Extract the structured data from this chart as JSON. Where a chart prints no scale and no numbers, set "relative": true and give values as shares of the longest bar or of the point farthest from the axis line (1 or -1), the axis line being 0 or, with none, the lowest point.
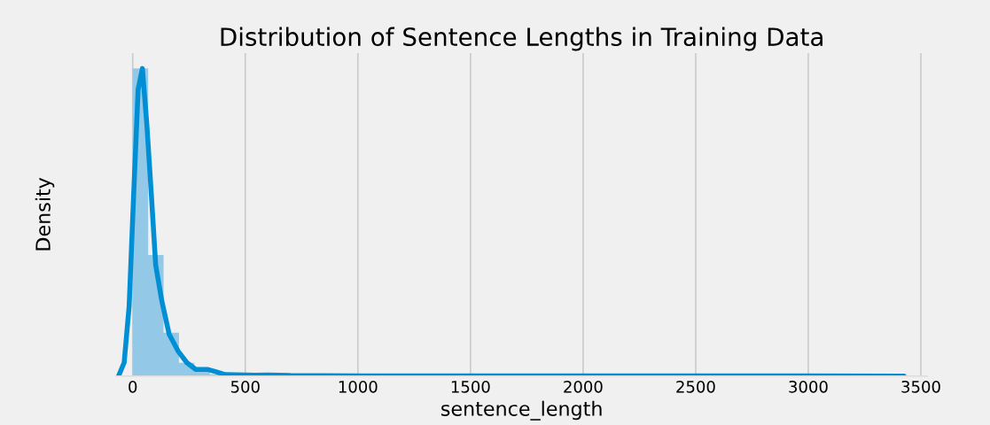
{
  "chart_data": {
    "type": "histogram",
    "title": "Distribution of Sentence Lengths in Training Data",
    "xlabel": "sentence_length",
    "ylabel": "Density",
    "relative": true,
    "xlim": [
      -75,
      3530
    ],
    "xticks": [
      0,
      500,
      1000,
      1500,
      2000,
      2500,
      3000,
      3500
    ],
    "grid": "x",
    "tick_labels": "x",
    "series": [
      {
        "type": "histogram",
        "color": "#93c9e6",
        "bins": [
          0,
          68.5,
          137,
          205.5,
          274,
          342.5,
          411,
          479.5,
          548,
          616.5,
          685,
          753.5,
          822,
          890.5,
          959,
          1027.5,
          1096,
          1164.5,
          1233,
          1301.5,
          1370,
          1438.5,
          1507,
          1575.5,
          1644,
          1712.5,
          1781,
          1849.5,
          1918,
          1986.5,
          2055,
          2123.5,
          2192,
          2260.5,
          2329,
          2397.5,
          2466,
          2534.5,
          2603,
          2671.5,
          2740,
          2808.5,
          2877,
          2945.5,
          3014,
          3082.5,
          3151,
          3219.5,
          3288,
          3356.5,
          3425
        ],
        "values": [
          1,
          0.394,
          0.141,
          0.043,
          0.014,
          0.006,
          0.004,
          0.003,
          0.002,
          0.002,
          0.002,
          0.001,
          0.001,
          0.001,
          0.001,
          0.001,
          0.001,
          0.001,
          0.001,
          0.001,
          0.001,
          0.001,
          0.001,
          0.001,
          0.001,
          0.001,
          0.001,
          0.001,
          0.001,
          0.001,
          0.001,
          0.001,
          0.001,
          0.001,
          0.001,
          0.001,
          0.001,
          0.001,
          0.001,
          0.001,
          0.001,
          0.001,
          0.001,
          0.001,
          0.001,
          0.001,
          0.001,
          0.001,
          0.001,
          0.001
        ]
      },
      {
        "type": "line",
        "color": "#008fd5",
        "x": [
          -63,
          -38,
          -16,
          4,
          24,
          43,
          63,
          83,
          102,
          129,
          162,
          201,
          240,
          280,
          331,
          370,
          410,
          544,
          600,
          700,
          1000,
          2000,
          3000,
          3425
        ],
        "values": [
          0,
          0.044,
          0.226,
          0.587,
          0.932,
          1.0,
          0.815,
          0.587,
          0.361,
          0.245,
          0.136,
          0.082,
          0.044,
          0.022,
          0.022,
          0.014,
          0.005,
          0.003,
          0.004,
          0.002,
          0.001,
          0.001,
          0.001,
          0
        ]
      }
    ]
  }
}
